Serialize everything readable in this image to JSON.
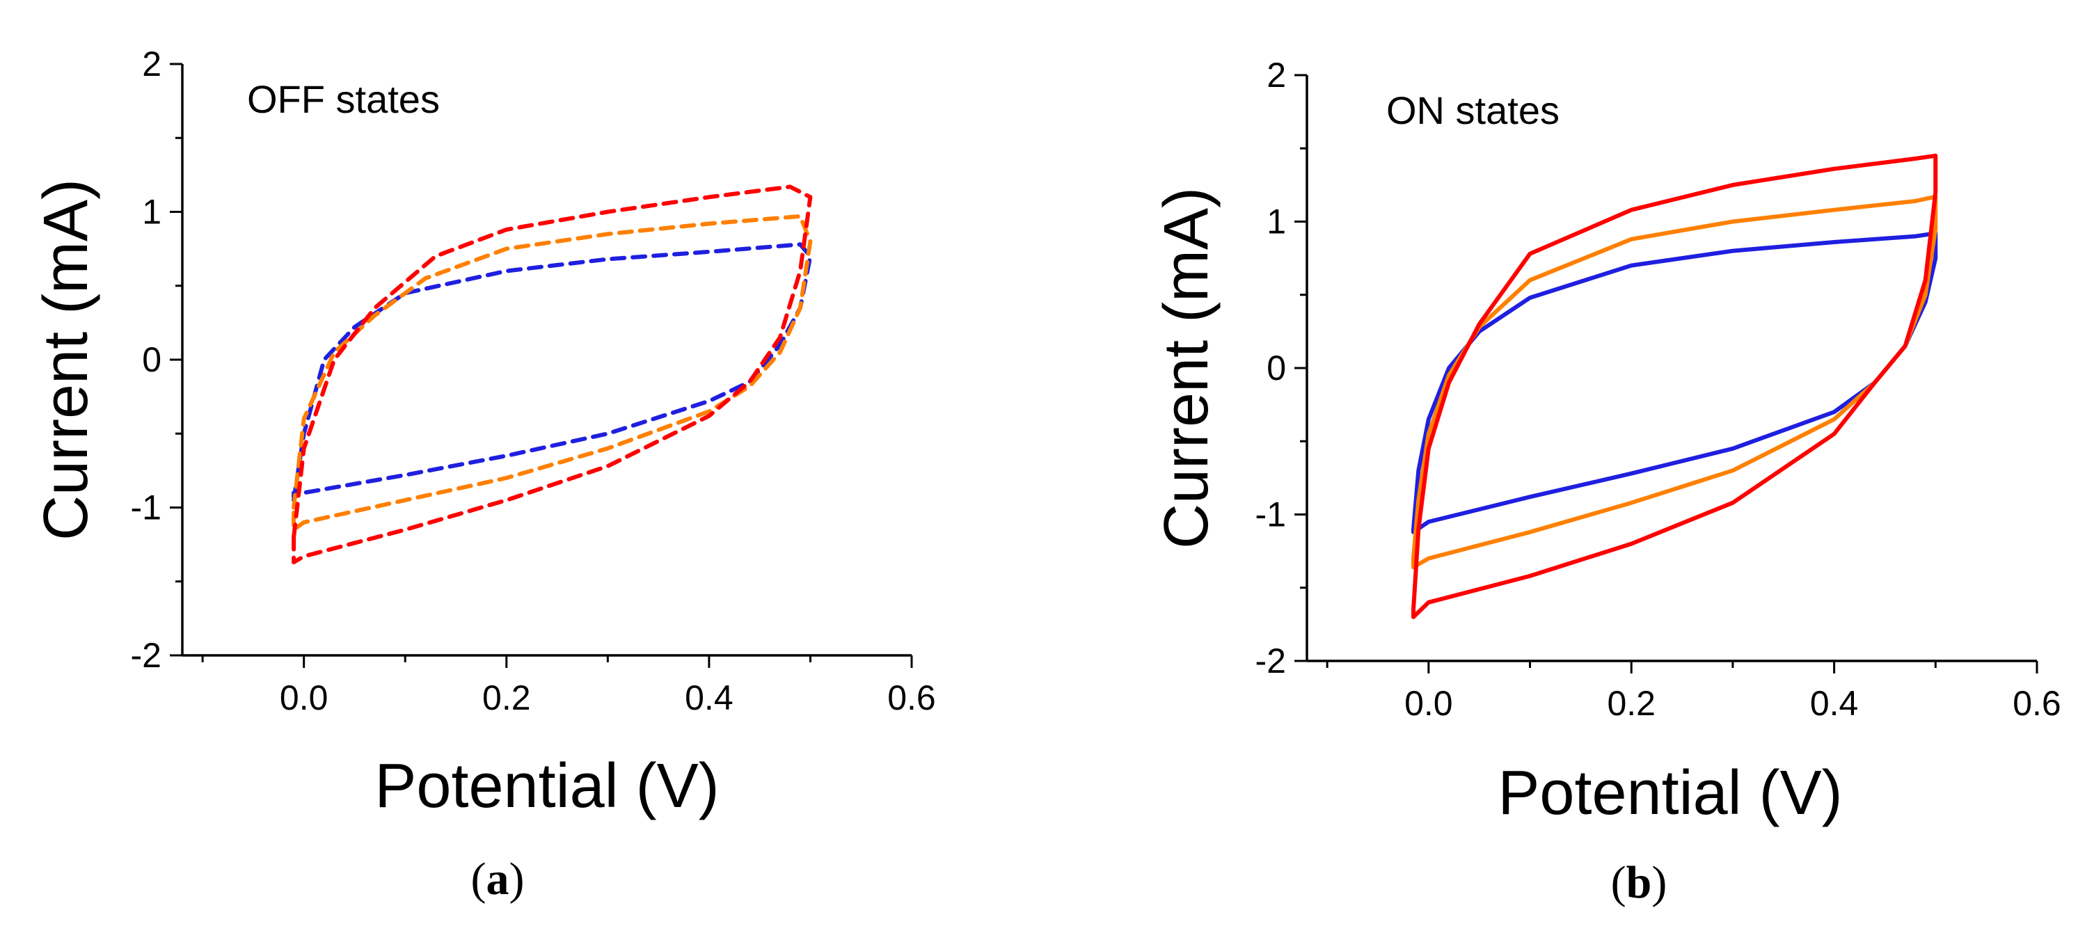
{
  "chart_data": [
    {
      "type": "line",
      "panel": "a",
      "annotation": "OFF states",
      "xlabel": "Potential (V)",
      "ylabel": "Current (mA)",
      "xlim": [
        -0.12,
        0.6
      ],
      "ylim": [
        -2,
        2
      ],
      "xticks": [
        0.0,
        0.2,
        0.4,
        0.6
      ],
      "xtick_labels": [
        "0.0",
        "0.2",
        "0.4",
        "0.6"
      ],
      "yticks": [
        -2,
        -1,
        0,
        1,
        2
      ],
      "ytick_labels": [
        "-2",
        "-1",
        "0",
        "1",
        "2"
      ],
      "line_style": "dashed",
      "series": [
        {
          "name": "blue",
          "color": "#1f1fe0",
          "x": [
            -0.01,
            0.0,
            0.02,
            0.05,
            0.1,
            0.2,
            0.3,
            0.4,
            0.49,
            0.5,
            0.49,
            0.47,
            0.44,
            0.4,
            0.3,
            0.2,
            0.1,
            0.0,
            -0.01,
            -0.01,
            -0.01
          ],
          "y": [
            -0.95,
            -0.5,
            0.0,
            0.22,
            0.45,
            0.6,
            0.68,
            0.73,
            0.78,
            0.7,
            0.35,
            0.1,
            -0.15,
            -0.28,
            -0.5,
            -0.65,
            -0.78,
            -0.9,
            -0.93,
            -0.9,
            -0.95
          ]
        },
        {
          "name": "orange",
          "color": "#ff8000",
          "x": [
            -0.01,
            0.0,
            0.03,
            0.07,
            0.12,
            0.2,
            0.3,
            0.4,
            0.49,
            0.5,
            0.49,
            0.47,
            0.44,
            0.4,
            0.3,
            0.2,
            0.1,
            0.0,
            -0.01,
            -0.01
          ],
          "y": [
            -1.0,
            -0.4,
            0.05,
            0.3,
            0.55,
            0.75,
            0.85,
            0.92,
            0.97,
            0.8,
            0.35,
            0.05,
            -0.18,
            -0.35,
            -0.6,
            -0.8,
            -0.95,
            -1.1,
            -1.15,
            -1.0
          ]
        },
        {
          "name": "red",
          "color": "#ff0000",
          "x": [
            -0.01,
            0.0,
            0.03,
            0.07,
            0.13,
            0.2,
            0.3,
            0.4,
            0.48,
            0.5,
            0.49,
            0.47,
            0.44,
            0.4,
            0.3,
            0.2,
            0.1,
            0.0,
            -0.01,
            -0.01
          ],
          "y": [
            -1.2,
            -0.6,
            0.0,
            0.35,
            0.7,
            0.88,
            1.0,
            1.1,
            1.17,
            1.1,
            0.6,
            0.15,
            -0.15,
            -0.38,
            -0.72,
            -0.95,
            -1.15,
            -1.33,
            -1.37,
            -1.2
          ]
        }
      ]
    },
    {
      "type": "line",
      "panel": "b",
      "annotation": "ON states",
      "xlabel": "Potential (V)",
      "ylabel": "Current (mA)",
      "xlim": [
        -0.12,
        0.6
      ],
      "ylim": [
        -2,
        2
      ],
      "xticks": [
        0.0,
        0.2,
        0.4,
        0.6
      ],
      "xtick_labels": [
        "0.0",
        "0.2",
        "0.4",
        "0.6"
      ],
      "yticks": [
        -2,
        -1,
        0,
        1,
        2
      ],
      "ytick_labels": [
        "-2",
        "-1",
        "0",
        "1",
        "2"
      ],
      "line_style": "solid",
      "series": [
        {
          "name": "blue",
          "color": "#1f1fe0",
          "x": [
            -0.015,
            -0.01,
            0.0,
            0.02,
            0.05,
            0.1,
            0.2,
            0.3,
            0.4,
            0.48,
            0.5,
            0.5,
            0.49,
            0.47,
            0.44,
            0.4,
            0.3,
            0.2,
            0.1,
            0.0,
            -0.015,
            -0.015
          ],
          "y": [
            -1.1,
            -0.7,
            -0.35,
            0.0,
            0.25,
            0.48,
            0.7,
            0.8,
            0.86,
            0.9,
            0.92,
            0.75,
            0.45,
            0.15,
            -0.1,
            -0.3,
            -0.55,
            -0.72,
            -0.88,
            -1.05,
            -1.12,
            -1.1
          ]
        },
        {
          "name": "orange",
          "color": "#ff8000",
          "x": [
            -0.015,
            -0.01,
            0.0,
            0.02,
            0.05,
            0.1,
            0.2,
            0.3,
            0.4,
            0.48,
            0.5,
            0.5,
            0.49,
            0.47,
            0.44,
            0.4,
            0.3,
            0.2,
            0.1,
            0.0,
            -0.015,
            -0.015
          ],
          "y": [
            -1.3,
            -0.9,
            -0.45,
            -0.05,
            0.28,
            0.6,
            0.88,
            1.0,
            1.08,
            1.14,
            1.17,
            0.95,
            0.5,
            0.15,
            -0.1,
            -0.35,
            -0.7,
            -0.92,
            -1.12,
            -1.3,
            -1.36,
            -1.3
          ]
        },
        {
          "name": "red",
          "color": "#ff0000",
          "x": [
            -0.015,
            -0.01,
            0.0,
            0.02,
            0.05,
            0.1,
            0.2,
            0.3,
            0.4,
            0.48,
            0.5,
            0.5,
            0.49,
            0.47,
            0.44,
            0.4,
            0.3,
            0.2,
            0.1,
            0.0,
            -0.015,
            -0.015
          ],
          "y": [
            -1.65,
            -1.1,
            -0.55,
            -0.1,
            0.3,
            0.78,
            1.08,
            1.25,
            1.36,
            1.43,
            1.45,
            1.2,
            0.6,
            0.15,
            -0.1,
            -0.45,
            -0.92,
            -1.2,
            -1.42,
            -1.6,
            -1.7,
            -1.65
          ]
        }
      ]
    }
  ],
  "panels": [
    {
      "label": "a"
    },
    {
      "label": "b"
    }
  ]
}
